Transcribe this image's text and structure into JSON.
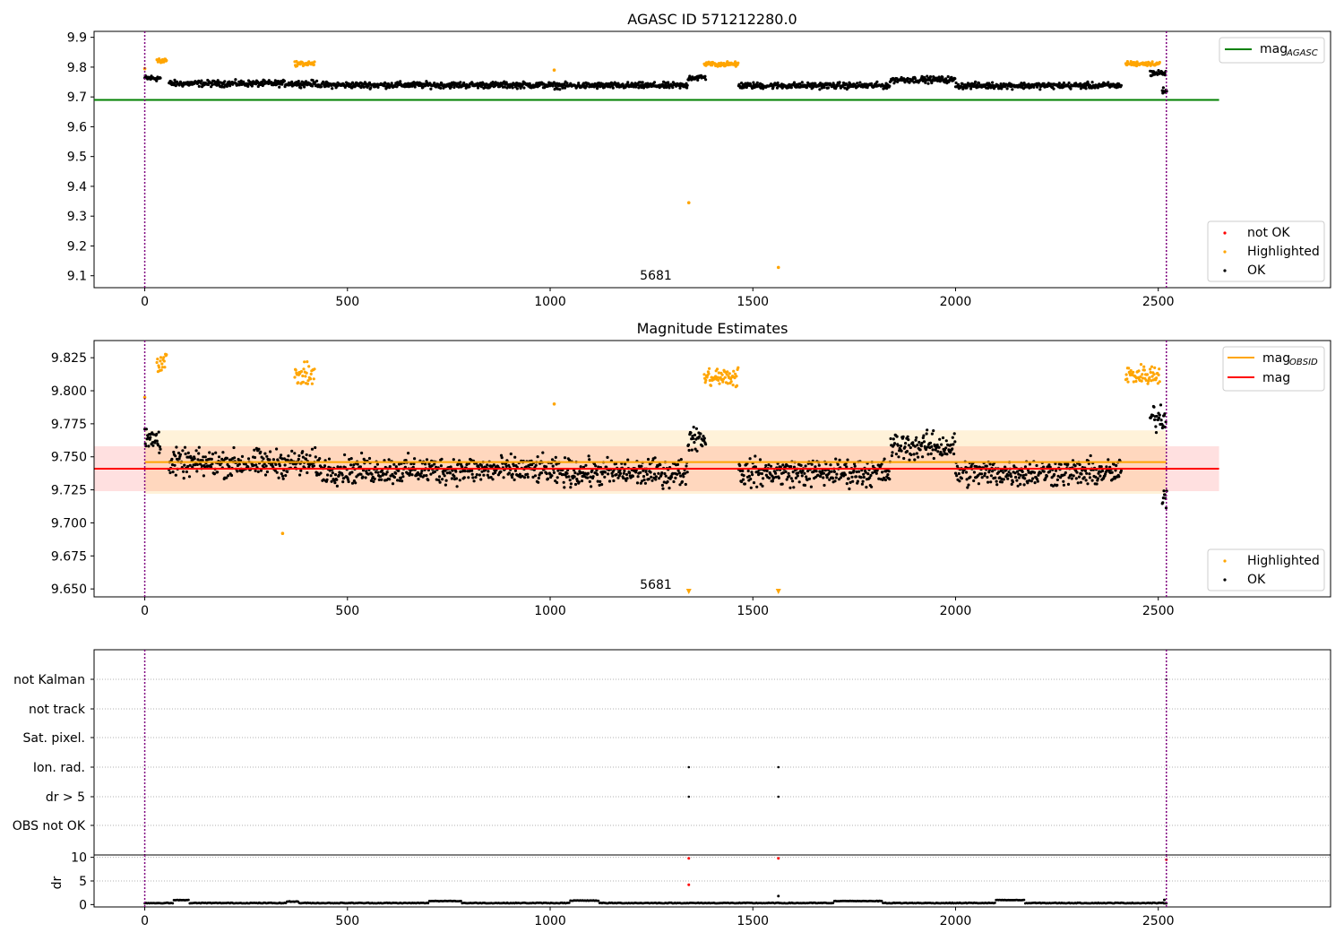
{
  "chart_data": [
    {
      "type": "scatter",
      "title": "AGASC ID 571212280.0",
      "xlabel": "",
      "ylabel": "",
      "xlim": [
        -125,
        2925
      ],
      "ylim": [
        9.06,
        9.92
      ],
      "xticks": [
        0,
        500,
        1000,
        1500,
        2000,
        2500
      ],
      "yticks": [
        9.1,
        9.2,
        9.3,
        9.4,
        9.5,
        9.6,
        9.7,
        9.8,
        9.9
      ],
      "ytick_decimals": 1,
      "mag_agasc": 9.69,
      "obsid_boundaries": [
        0,
        2520
      ],
      "obsid_label": "5681",
      "legend": {
        "position": "top-right",
        "entries": [
          {
            "label": "mag",
            "sub": "AGASC",
            "color": "#008000"
          }
        ]
      },
      "legend2": {
        "position": "bottom-right",
        "entries": [
          {
            "label": "not OK",
            "color": "#ff0000"
          },
          {
            "label": "Highlighted",
            "color": "#ffa500"
          },
          {
            "label": "OK",
            "color": "#000000"
          }
        ]
      },
      "series": [
        {
          "name": "OK",
          "color": "#000000",
          "segments": [
            [
              0,
              40,
              9.763
            ],
            [
              60,
              430,
              9.745
            ],
            [
              430,
              1000,
              9.74
            ],
            [
              1000,
              1340,
              9.738
            ],
            [
              1340,
              1385,
              9.765
            ],
            [
              1465,
              1840,
              9.738
            ],
            [
              1840,
              2000,
              9.758
            ],
            [
              2000,
              2410,
              9.738
            ],
            [
              2480,
              2520,
              9.78
            ],
            [
              2510,
              2522,
              9.72
            ]
          ],
          "spread": 0.016
        },
        {
          "name": "Highlighted",
          "color": "#ffa500",
          "segments": [
            [
              30,
              55,
              9.822
            ],
            [
              370,
              420,
              9.812
            ],
            [
              1380,
              1465,
              9.81
            ],
            [
              2420,
              2505,
              9.812
            ]
          ],
          "spread": 0.012,
          "points": [
            [
              0,
              9.795
            ],
            [
              1010,
              9.79
            ],
            [
              1342,
              9.345
            ],
            [
              1563,
              9.128
            ]
          ]
        }
      ]
    },
    {
      "type": "scatter",
      "title": "Magnitude Estimates",
      "xlabel": "",
      "ylabel": "",
      "xlim": [
        -125,
        2925
      ],
      "ylim": [
        9.644,
        9.838
      ],
      "xticks": [
        0,
        500,
        1000,
        1500,
        2000,
        2500
      ],
      "yticks": [
        9.65,
        9.675,
        9.7,
        9.725,
        9.75,
        9.775,
        9.8,
        9.825
      ],
      "ytick_decimals": 3,
      "mag_obsid": 9.746,
      "mag_obsid_band": [
        9.722,
        9.77
      ],
      "mag": 9.741,
      "mag_band": [
        9.724,
        9.758
      ],
      "obsid_boundaries": [
        0,
        2520
      ],
      "obsid_label": "5681",
      "legend": {
        "position": "top-right",
        "entries": [
          {
            "label": "mag",
            "sub": "OBSID",
            "color": "#ffa500"
          },
          {
            "label": "mag",
            "sub": "",
            "color": "#ff0000"
          }
        ]
      },
      "legend2": {
        "position": "bottom-right",
        "entries": [
          {
            "label": "Highlighted",
            "color": "#ffa500"
          },
          {
            "label": "OK",
            "color": "#000000"
          }
        ]
      },
      "series": [
        {
          "name": "OK",
          "color": "#000000",
          "segments": [
            [
              0,
              40,
              9.763
            ],
            [
              60,
              430,
              9.745
            ],
            [
              430,
              1000,
              9.74
            ],
            [
              1000,
              1340,
              9.738
            ],
            [
              1340,
              1385,
              9.765
            ],
            [
              1465,
              1840,
              9.738
            ],
            [
              1840,
              2000,
              9.758
            ],
            [
              2000,
              2410,
              9.738
            ],
            [
              2480,
              2520,
              9.78
            ],
            [
              2510,
              2522,
              9.72
            ]
          ],
          "spread": 0.016
        },
        {
          "name": "Highlighted",
          "color": "#ffa500",
          "segments": [
            [
              30,
              55,
              9.822
            ],
            [
              370,
              420,
              9.812
            ],
            [
              1380,
              1465,
              9.81
            ],
            [
              2420,
              2505,
              9.812
            ]
          ],
          "spread": 0.012,
          "points": [
            [
              0,
              9.795
            ],
            [
              1010,
              9.79
            ],
            [
              340,
              9.692
            ]
          ]
        },
        {
          "name": "Below range",
          "color": "#ffa500",
          "marker": "triangle-down",
          "x": [
            1342,
            1563
          ]
        }
      ]
    },
    {
      "type": "scatter",
      "title": "",
      "xlim": [
        -125,
        2925
      ],
      "xticks": [
        0,
        500,
        1000,
        1500,
        2000,
        2500
      ],
      "flag_labels": [
        "not Kalman",
        "not track",
        "Sat. pixel.",
        "Ion. rad.",
        "dr > 5",
        "OBS not OK"
      ],
      "flag_points": [
        {
          "flag": "Ion. rad.",
          "x": [
            1342,
            1563
          ]
        },
        {
          "flag": "dr > 5",
          "x": [
            1342,
            1563
          ]
        },
        {
          "flag": "not Kalman",
          "x": [
            2520
          ]
        }
      ],
      "obsid_boundaries": [
        0,
        2520
      ]
    },
    {
      "type": "scatter",
      "title": "",
      "ylabel": "dr",
      "xlim": [
        -125,
        2925
      ],
      "ylim": [
        -0.5,
        10.5
      ],
      "xticks": [
        0,
        500,
        1000,
        1500,
        2000,
        2500
      ],
      "yticks": [
        0,
        5,
        10
      ],
      "dr_baseline": 0.25,
      "dr_bumps": [
        [
          70,
          110,
          0.9
        ],
        [
          350,
          380,
          0.6
        ],
        [
          700,
          780,
          0.7
        ],
        [
          1050,
          1120,
          0.8
        ],
        [
          1700,
          1820,
          0.7
        ],
        [
          2100,
          2170,
          0.9
        ]
      ],
      "dr_outliers": [
        [
          1342,
          4.2,
          "#ff0000"
        ],
        [
          1342,
          9.8,
          "#ff0000"
        ],
        [
          1563,
          9.8,
          "#ff0000"
        ],
        [
          1563,
          1.8,
          "#000000"
        ],
        [
          2520,
          9.5,
          "#ff0000"
        ],
        [
          2515,
          1.0,
          "#000000"
        ]
      ],
      "obsid_boundaries": [
        0,
        2520
      ]
    }
  ]
}
